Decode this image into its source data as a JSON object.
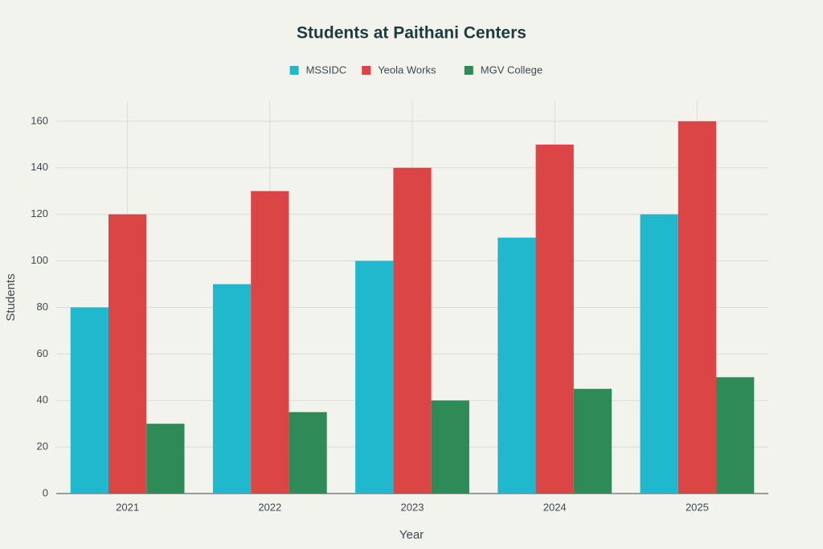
{
  "chart_data": {
    "type": "bar",
    "title": "Students at Paithani Centers",
    "x_label": "Year",
    "y_label": "Students",
    "categories": [
      "2021",
      "2022",
      "2023",
      "2024",
      "2025"
    ],
    "series": [
      {
        "name": "MSSIDC",
        "color": "#1fb8cd",
        "values": [
          80,
          90,
          100,
          110,
          120
        ]
      },
      {
        "name": "Yeola Works",
        "color": "#db4545",
        "values": [
          120,
          130,
          140,
          150,
          160
        ]
      },
      {
        "name": "MGV College",
        "color": "#2e8b57",
        "values": [
          30,
          35,
          40,
          45,
          50
        ]
      }
    ],
    "ylim": [
      0,
      168.6
    ],
    "yticks": [
      0,
      20,
      40,
      60,
      80,
      100,
      120,
      140,
      160
    ],
    "grid": true,
    "legend": "top"
  }
}
